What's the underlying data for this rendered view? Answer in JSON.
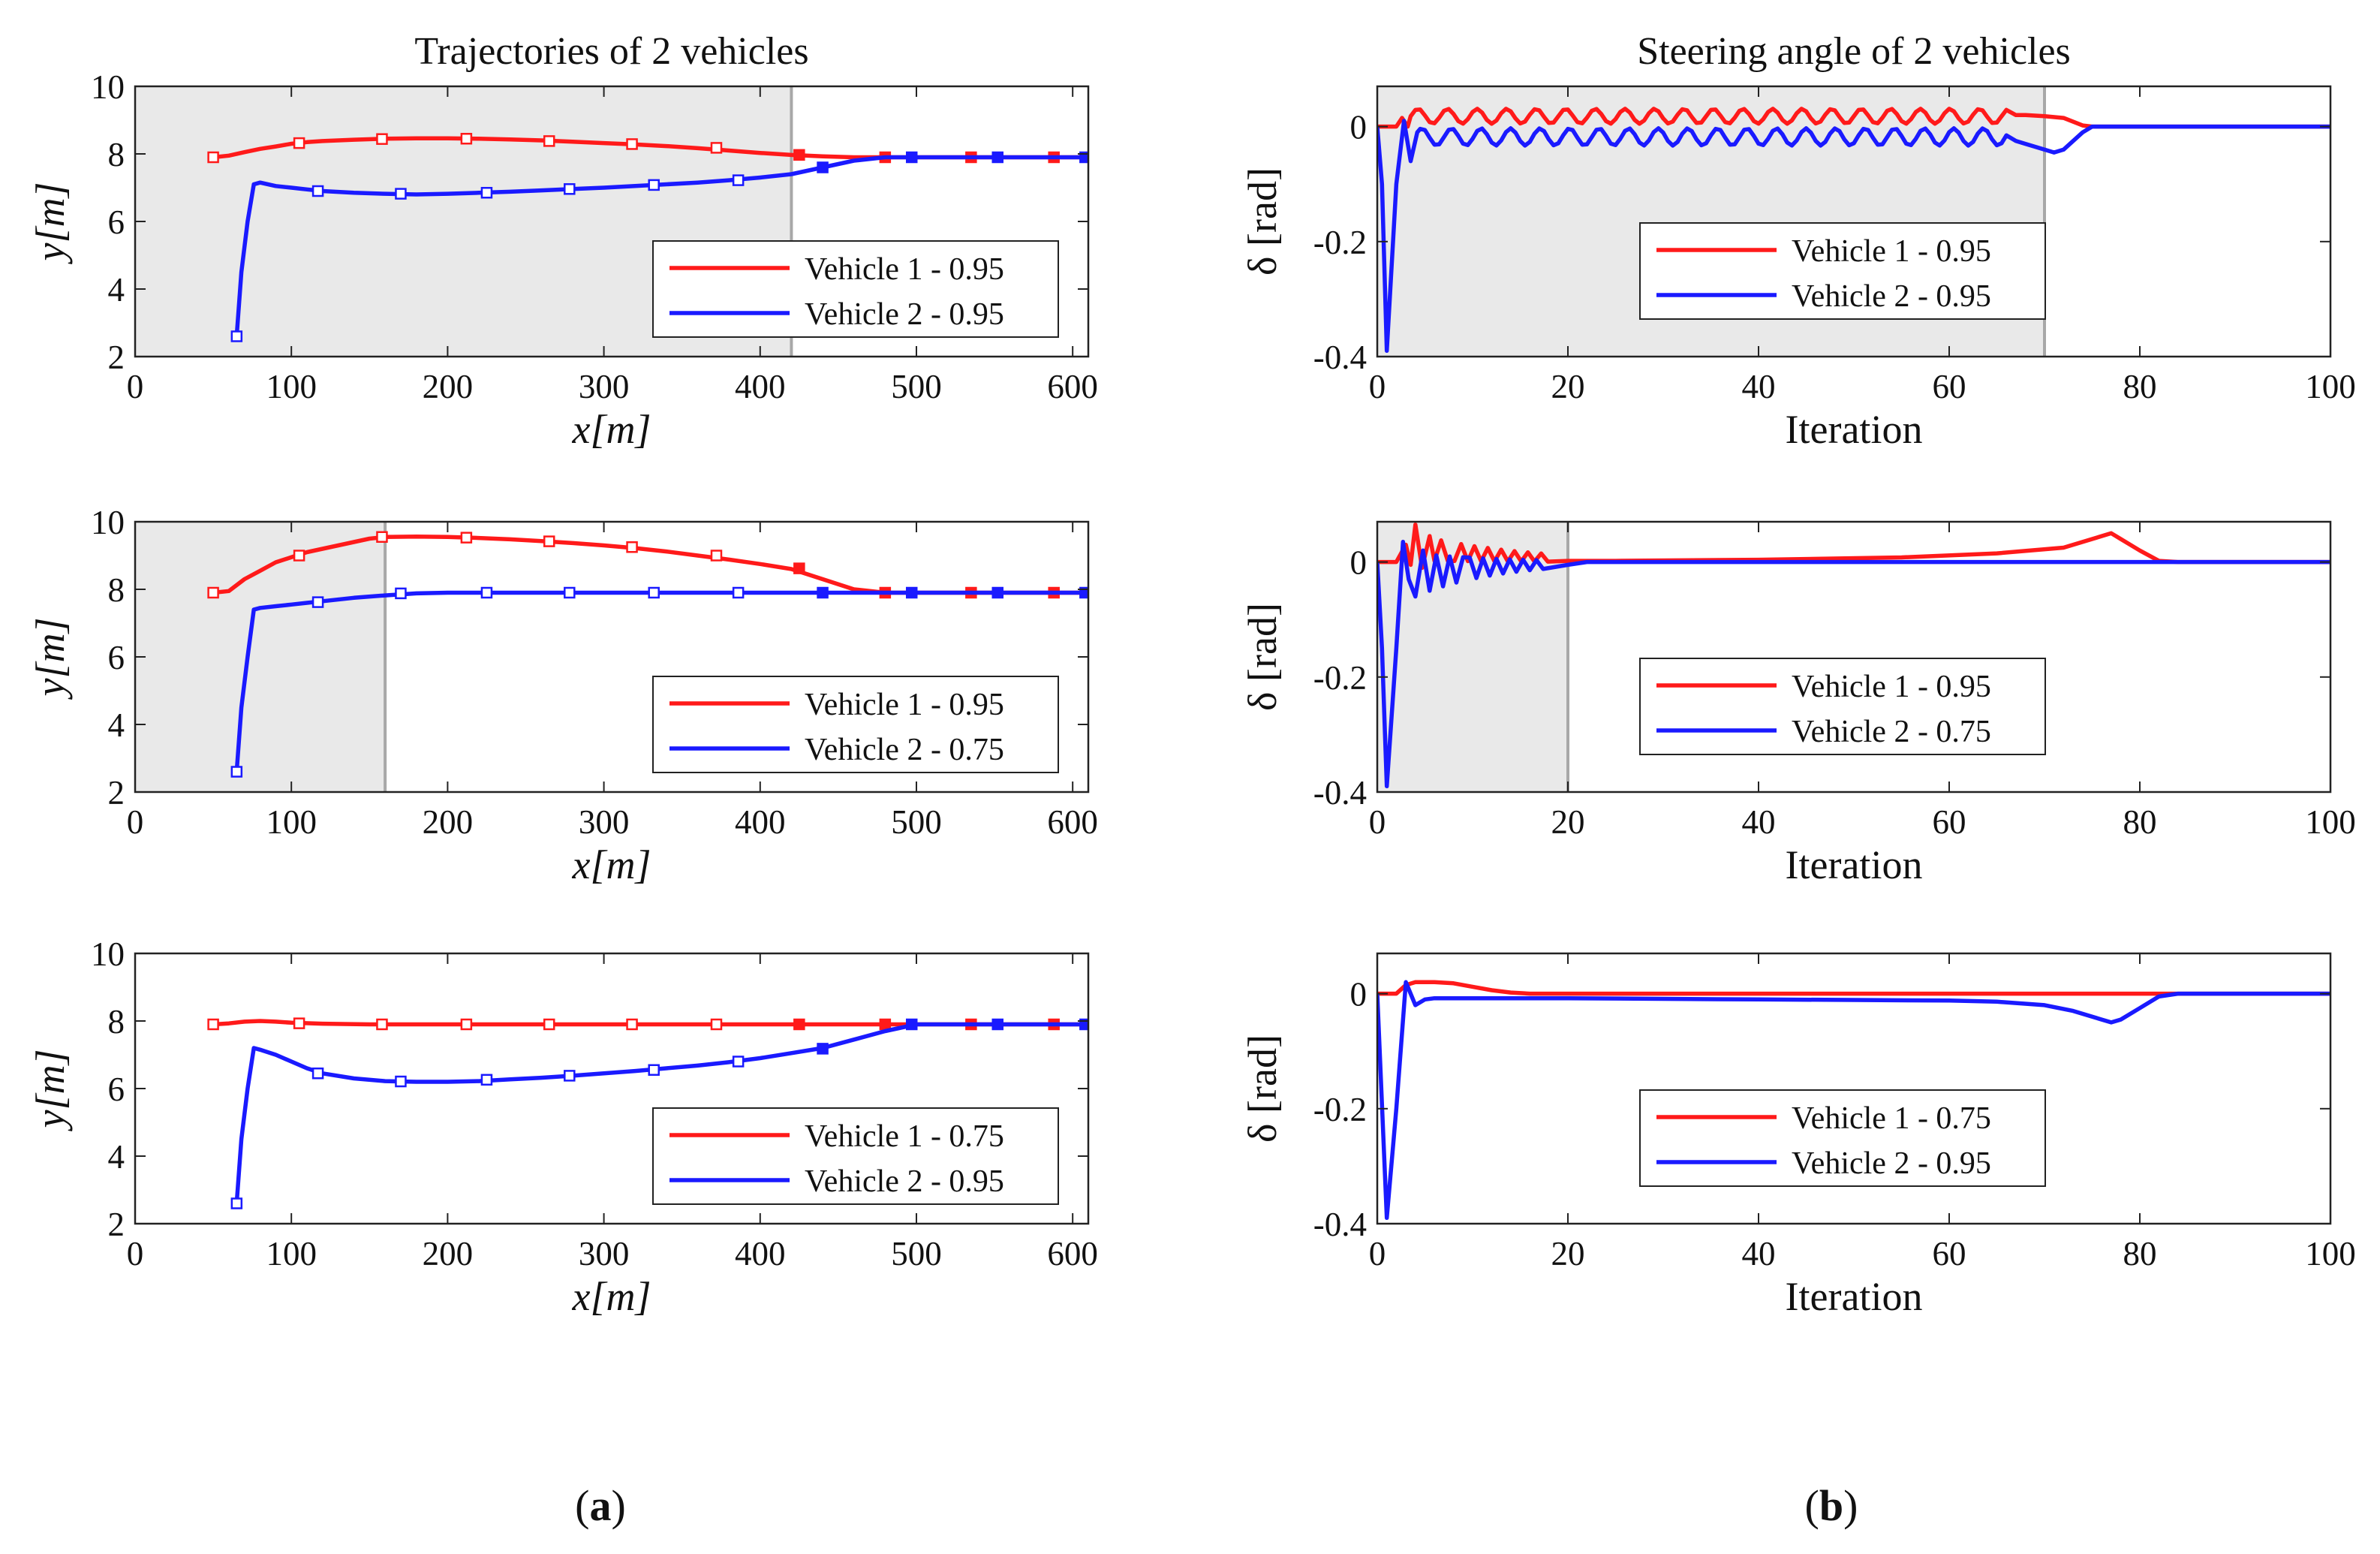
{
  "colors": {
    "vehicle1": "#ff1a1a",
    "vehicle2": "#1a1aff",
    "shade": "#e9e9e9",
    "shade_edge": "#a8a8a8",
    "axes": "#222222"
  },
  "captions": {
    "left": "a",
    "right": "b"
  },
  "chart_data": [
    {
      "id": "traj1",
      "type": "line",
      "column": "left",
      "row": 0,
      "title": "Trajectories of 2 vehicles",
      "xlabel": "x[m]",
      "ylabel": "y[m]",
      "xlim": [
        0,
        610
      ],
      "ylim": [
        2,
        10
      ],
      "xticks": [
        "0",
        "100",
        "200",
        "300",
        "400",
        "500",
        "600"
      ],
      "yticks": [
        "2",
        "4",
        "6",
        "8",
        "10"
      ],
      "shade_x": [
        0,
        420
      ],
      "legend_position": "lower-right",
      "series": [
        {
          "name": "Vehicle 1 - 0.95",
          "color_key": "vehicle1",
          "x": [
            50,
            60,
            70,
            80,
            90,
            100,
            110,
            120,
            140,
            160,
            180,
            200,
            220,
            240,
            260,
            280,
            300,
            320,
            340,
            360,
            380,
            400,
            420,
            440,
            460,
            480,
            500,
            540,
            580,
            610
          ],
          "y": [
            7.9,
            7.95,
            8.05,
            8.15,
            8.22,
            8.3,
            8.35,
            8.38,
            8.42,
            8.45,
            8.46,
            8.46,
            8.45,
            8.43,
            8.4,
            8.36,
            8.32,
            8.28,
            8.23,
            8.17,
            8.1,
            8.03,
            7.97,
            7.93,
            7.9,
            7.9,
            7.9,
            7.9,
            7.9,
            7.9
          ],
          "markers_x": [
            50,
            105,
            158,
            212,
            265,
            318,
            372,
            425,
            480,
            535,
            588
          ],
          "markers_y": [
            7.9,
            8.32,
            8.44,
            8.45,
            8.38,
            8.29,
            8.18,
            7.97,
            7.9,
            7.9,
            7.9
          ]
        },
        {
          "name": "Vehicle 2 - 0.95",
          "color_key": "vehicle2",
          "x": [
            65,
            68,
            72,
            76,
            80,
            90,
            100,
            110,
            120,
            140,
            160,
            180,
            200,
            220,
            240,
            260,
            280,
            300,
            320,
            340,
            360,
            380,
            400,
            420,
            440,
            460,
            480,
            500,
            540,
            580,
            610
          ],
          "y": [
            2.6,
            4.5,
            6.0,
            7.1,
            7.15,
            7.05,
            7.0,
            6.95,
            6.9,
            6.85,
            6.82,
            6.8,
            6.82,
            6.85,
            6.88,
            6.92,
            6.96,
            7.0,
            7.05,
            7.1,
            7.15,
            7.22,
            7.3,
            7.4,
            7.6,
            7.8,
            7.9,
            7.9,
            7.9,
            7.9,
            7.9
          ],
          "markers_x": [
            65,
            117,
            170,
            225,
            278,
            332,
            386,
            440,
            497,
            552,
            608
          ],
          "markers_y": [
            2.6,
            6.9,
            6.82,
            6.85,
            6.96,
            7.08,
            7.22,
            7.6,
            7.9,
            7.9,
            7.9
          ]
        }
      ]
    },
    {
      "id": "steer1",
      "type": "line",
      "column": "right",
      "row": 0,
      "title": "Steering angle of 2 vehicles",
      "xlabel": "Iteration",
      "ylabel": "δ [rad]",
      "xlim": [
        0,
        100
      ],
      "ylim": [
        -0.4,
        0.07
      ],
      "xticks": [
        "0",
        "20",
        "40",
        "60",
        "80",
        "100"
      ],
      "yticks": [
        "-0.4",
        "-0.2",
        "0"
      ],
      "ytick_values": [
        -0.4,
        -0.2,
        0
      ],
      "shade_x": [
        0,
        70
      ],
      "legend_position": "right",
      "series": [
        {
          "name": "Vehicle 1 - 0.95",
          "color_key": "vehicle1",
          "pattern": "v1_osc_long",
          "x": [],
          "y": []
        },
        {
          "name": "Vehicle 2 - 0.95",
          "color_key": "vehicle2",
          "pattern": "v2_osc_long",
          "x": [],
          "y": []
        }
      ]
    },
    {
      "id": "traj2",
      "type": "line",
      "column": "left",
      "row": 1,
      "title": "",
      "xlabel": "x[m]",
      "ylabel": "y[m]",
      "xlim": [
        0,
        610
      ],
      "ylim": [
        2,
        10
      ],
      "xticks": [
        "0",
        "100",
        "200",
        "300",
        "400",
        "500",
        "600"
      ],
      "yticks": [
        "2",
        "4",
        "6",
        "8",
        "10"
      ],
      "shade_x": [
        0,
        160
      ],
      "legend_position": "lower-right",
      "series": [
        {
          "name": "Vehicle 1 - 0.95",
          "color_key": "vehicle1",
          "x": [
            50,
            60,
            70,
            80,
            90,
            100,
            110,
            120,
            130,
            140,
            150,
            160,
            180,
            200,
            220,
            240,
            260,
            280,
            300,
            320,
            340,
            360,
            380,
            400,
            420,
            440,
            460,
            480,
            500,
            540,
            580,
            610
          ],
          "y": [
            7.9,
            7.95,
            8.3,
            8.55,
            8.8,
            8.95,
            9.1,
            9.2,
            9.3,
            9.4,
            9.5,
            9.55,
            9.56,
            9.55,
            9.52,
            9.48,
            9.43,
            9.37,
            9.3,
            9.22,
            9.12,
            9.0,
            8.88,
            8.75,
            8.6,
            8.3,
            8.0,
            7.9,
            7.9,
            7.9,
            7.9,
            7.9
          ],
          "markers_x": [
            50,
            105,
            158,
            212,
            265,
            318,
            372,
            425,
            480,
            535,
            588
          ],
          "markers_y": [
            7.9,
            9.0,
            9.55,
            9.53,
            9.42,
            9.25,
            9.0,
            8.62,
            7.9,
            7.9,
            7.9
          ]
        },
        {
          "name": "Vehicle 2 - 0.75",
          "color_key": "vehicle2",
          "x": [
            65,
            68,
            72,
            76,
            80,
            90,
            100,
            110,
            120,
            140,
            160,
            180,
            200,
            250,
            300,
            350,
            400,
            450,
            500,
            550,
            610
          ],
          "y": [
            2.6,
            4.5,
            6.0,
            7.4,
            7.45,
            7.5,
            7.55,
            7.6,
            7.65,
            7.75,
            7.82,
            7.88,
            7.9,
            7.9,
            7.9,
            7.9,
            7.9,
            7.9,
            7.9,
            7.9,
            7.9
          ],
          "markers_x": [
            65,
            117,
            170,
            225,
            278,
            332,
            386,
            440,
            497,
            552,
            608
          ],
          "markers_y": [
            2.6,
            7.62,
            7.88,
            7.9,
            7.9,
            7.9,
            7.9,
            7.9,
            7.9,
            7.9,
            7.9
          ]
        }
      ]
    },
    {
      "id": "steer2",
      "type": "line",
      "column": "right",
      "row": 1,
      "title": "",
      "xlabel": "Iteration",
      "ylabel": "δ [rad]",
      "xlim": [
        0,
        100
      ],
      "ylim": [
        -0.4,
        0.07
      ],
      "xticks": [
        "0",
        "20",
        "40",
        "60",
        "80",
        "100"
      ],
      "yticks": [
        "-0.4",
        "-0.2",
        "0"
      ],
      "ytick_values": [
        -0.4,
        -0.2,
        0
      ],
      "shade_x": [
        0,
        20
      ],
      "legend_position": "right",
      "series": [
        {
          "name": "Vehicle 1 - 0.95",
          "color_key": "vehicle1",
          "pattern": "v1_osc_short",
          "x": [],
          "y": []
        },
        {
          "name": "Vehicle 2 - 0.75",
          "color_key": "vehicle2",
          "pattern": "v2_osc_short",
          "x": [],
          "y": []
        }
      ]
    },
    {
      "id": "traj3",
      "type": "line",
      "column": "left",
      "row": 2,
      "title": "",
      "xlabel": "x[m]",
      "ylabel": "y[m]",
      "xlim": [
        0,
        610
      ],
      "ylim": [
        2,
        10
      ],
      "xticks": [
        "0",
        "100",
        "200",
        "300",
        "400",
        "500",
        "600"
      ],
      "yticks": [
        "2",
        "4",
        "6",
        "8",
        "10"
      ],
      "shade_x": null,
      "legend_position": "lower-right",
      "series": [
        {
          "name": "Vehicle 1 - 0.75",
          "color_key": "vehicle1",
          "x": [
            50,
            60,
            70,
            80,
            90,
            100,
            120,
            150,
            200,
            300,
            400,
            500,
            610
          ],
          "y": [
            7.9,
            7.93,
            7.98,
            8.0,
            7.98,
            7.95,
            7.92,
            7.9,
            7.9,
            7.9,
            7.9,
            7.9,
            7.9
          ],
          "markers_x": [
            50,
            105,
            158,
            212,
            265,
            318,
            372,
            425,
            480,
            535,
            588
          ],
          "markers_y": [
            7.9,
            7.93,
            7.9,
            7.9,
            7.9,
            7.9,
            7.9,
            7.9,
            7.9,
            7.9,
            7.9
          ]
        },
        {
          "name": "Vehicle 2 - 0.95",
          "color_key": "vehicle2",
          "x": [
            65,
            68,
            72,
            76,
            80,
            90,
            100,
            110,
            120,
            140,
            160,
            180,
            200,
            220,
            240,
            260,
            280,
            300,
            320,
            340,
            360,
            380,
            400,
            420,
            440,
            460,
            480,
            500,
            540,
            580,
            610
          ],
          "y": [
            2.6,
            4.5,
            6.0,
            7.2,
            7.15,
            7.0,
            6.8,
            6.6,
            6.45,
            6.3,
            6.22,
            6.2,
            6.2,
            6.22,
            6.27,
            6.32,
            6.38,
            6.45,
            6.52,
            6.6,
            6.68,
            6.78,
            6.9,
            7.05,
            7.2,
            7.45,
            7.7,
            7.9,
            7.9,
            7.9,
            7.9
          ],
          "markers_x": [
            65,
            117,
            170,
            225,
            278,
            332,
            386,
            440,
            497,
            552,
            608
          ],
          "markers_y": [
            2.6,
            6.45,
            6.21,
            6.26,
            6.38,
            6.55,
            6.8,
            7.18,
            7.9,
            7.9,
            7.9
          ]
        }
      ]
    },
    {
      "id": "steer3",
      "type": "line",
      "column": "right",
      "row": 2,
      "title": "",
      "xlabel": "Iteration",
      "ylabel": "δ [rad]",
      "xlim": [
        0,
        100
      ],
      "ylim": [
        -0.4,
        0.07
      ],
      "xticks": [
        "0",
        "20",
        "40",
        "60",
        "80",
        "100"
      ],
      "yticks": [
        "-0.4",
        "-0.2",
        "0"
      ],
      "ytick_values": [
        -0.4,
        -0.2,
        0
      ],
      "shade_x": null,
      "legend_position": "right",
      "series": [
        {
          "name": "Vehicle 1 - 0.75",
          "color_key": "vehicle1",
          "x": [
            0,
            1,
            2,
            3,
            4,
            5,
            6,
            8,
            10,
            12,
            14,
            16,
            20,
            40,
            60,
            70,
            78,
            80,
            82,
            84,
            90,
            100
          ],
          "y": [
            0,
            0,
            0,
            0.015,
            0.02,
            0.02,
            0.02,
            0.018,
            0.012,
            0.006,
            0.002,
            0,
            0,
            0,
            0,
            0,
            0,
            0,
            0,
            0,
            0,
            0
          ]
        },
        {
          "name": "Vehicle 2 - 0.95",
          "color_key": "vehicle2",
          "x": [
            0,
            1,
            2,
            3,
            4,
            5,
            6,
            8,
            10,
            20,
            30,
            40,
            50,
            60,
            65,
            70,
            73,
            76,
            77,
            78,
            80,
            82,
            84,
            90,
            100
          ],
          "y": [
            0,
            -0.39,
            -0.2,
            0.02,
            -0.02,
            -0.01,
            -0.008,
            -0.008,
            -0.008,
            -0.008,
            -0.009,
            -0.01,
            -0.011,
            -0.012,
            -0.014,
            -0.02,
            -0.03,
            -0.045,
            -0.05,
            -0.045,
            -0.025,
            -0.005,
            0,
            0,
            0
          ]
        }
      ]
    }
  ]
}
